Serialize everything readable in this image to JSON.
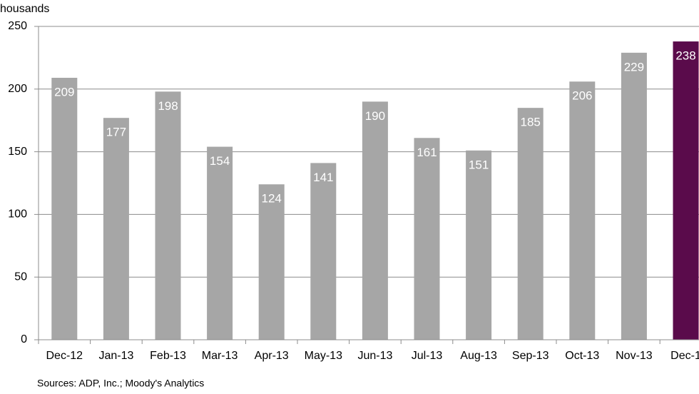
{
  "chart_data": {
    "type": "bar",
    "y_label": "housands",
    "source": "Sources: ADP, Inc.; Moody's Analytics",
    "categories": [
      "Dec-12",
      "Jan-13",
      "Feb-13",
      "Mar-13",
      "Apr-13",
      "May-13",
      "Jun-13",
      "Jul-13",
      "Aug-13",
      "Sep-13",
      "Oct-13",
      "Nov-13",
      "Dec-1"
    ],
    "values": [
      209,
      177,
      198,
      154,
      124,
      141,
      190,
      161,
      151,
      185,
      206,
      229,
      238
    ],
    "colors": [
      "#a6a6a6",
      "#a6a6a6",
      "#a6a6a6",
      "#a6a6a6",
      "#a6a6a6",
      "#a6a6a6",
      "#a6a6a6",
      "#a6a6a6",
      "#a6a6a6",
      "#a6a6a6",
      "#a6a6a6",
      "#a6a6a6",
      "#5a0b4b"
    ],
    "ylim": [
      0,
      250
    ],
    "yticks": [
      0,
      50,
      100,
      150,
      200,
      250
    ],
    "grid": true
  }
}
